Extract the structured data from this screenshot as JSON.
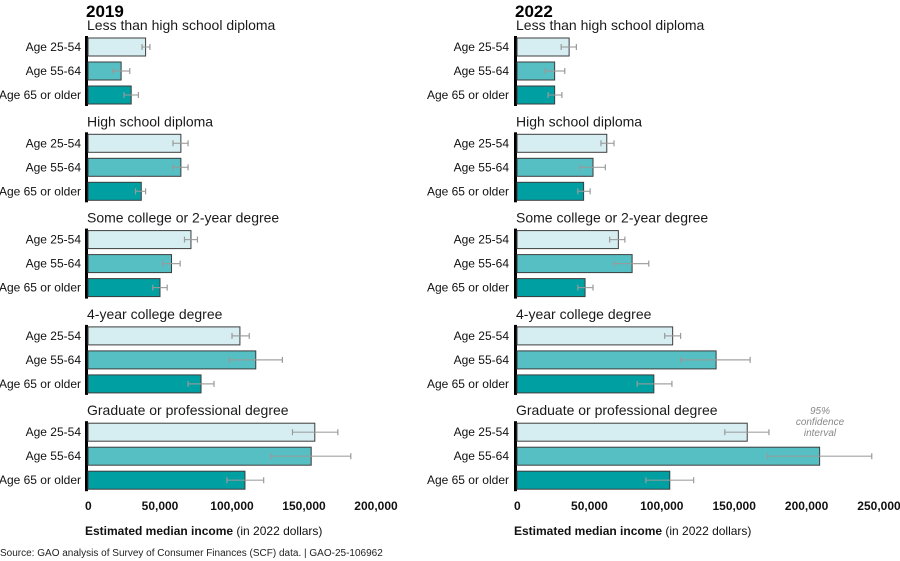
{
  "chart_data": [
    {
      "type": "bar",
      "orientation": "horizontal",
      "title": "2019",
      "xlabel_bold": "Estimated median income",
      "xlabel_rest": " (in 2022 dollars)",
      "xlim": [
        0,
        200000
      ],
      "ticks": [
        0,
        50000,
        100000,
        150000,
        200000
      ],
      "tick_labels": [
        "0",
        "50,000",
        "100,000",
        "150,000",
        "200,000"
      ],
      "series_names": [
        "Age 25-54",
        "Age 55-64",
        "Age 65 or older"
      ],
      "groups": [
        {
          "name": "Less than high school diploma",
          "values": [
            40000,
            23000,
            30000
          ],
          "ci_low": [
            37500,
            17000,
            25000
          ],
          "ci_high": [
            43000,
            29000,
            35000
          ]
        },
        {
          "name": "High school diploma",
          "values": [
            64500,
            64500,
            37000
          ],
          "ci_low": [
            59000,
            59000,
            33000
          ],
          "ci_high": [
            69500,
            69500,
            40000
          ]
        },
        {
          "name": "Some college or 2-year degree",
          "values": [
            71500,
            58000,
            50000
          ],
          "ci_low": [
            67000,
            52000,
            45000
          ],
          "ci_high": [
            76000,
            64000,
            55000
          ]
        },
        {
          "name": "4-year college degree",
          "values": [
            105500,
            116500,
            78500
          ],
          "ci_low": [
            100000,
            98000,
            69500
          ],
          "ci_high": [
            112000,
            135000,
            87500
          ]
        },
        {
          "name": "Graduate or professional degree",
          "values": [
            157500,
            155000,
            109000
          ],
          "ci_low": [
            142000,
            127000,
            96500
          ],
          "ci_high": [
            173500,
            182500,
            122000
          ]
        }
      ]
    },
    {
      "type": "bar",
      "orientation": "horizontal",
      "title": "2022",
      "xlabel_bold": "Estimated median income",
      "xlabel_rest": " (in 2022 dollars)",
      "xlim": [
        0,
        250000
      ],
      "ticks": [
        0,
        50000,
        100000,
        150000,
        200000,
        250000
      ],
      "tick_labels": [
        "0",
        "50,000",
        "100,000",
        "150,000",
        "200,000",
        "250,000"
      ],
      "series_names": [
        "Age 25-54",
        "Age 55-64",
        "Age 65 or older"
      ],
      "annotation": [
        "95%",
        "confidence",
        "interval"
      ],
      "groups": [
        {
          "name": "Less than high school diploma",
          "values": [
            36000,
            26000,
            26000
          ],
          "ci_low": [
            30500,
            19500,
            21500
          ],
          "ci_high": [
            41000,
            33000,
            31000
          ]
        },
        {
          "name": "High school diploma",
          "values": [
            62000,
            52500,
            46000
          ],
          "ci_low": [
            58000,
            43500,
            42000
          ],
          "ci_high": [
            67000,
            61000,
            50500
          ]
        },
        {
          "name": "Some college or 2-year degree",
          "values": [
            70000,
            79500,
            47000
          ],
          "ci_low": [
            64000,
            67000,
            42000
          ],
          "ci_high": [
            74500,
            91000,
            52500
          ]
        },
        {
          "name": "4-year college degree",
          "values": [
            107500,
            137500,
            94500
          ],
          "ci_low": [
            102000,
            113000,
            83000
          ],
          "ci_high": [
            113000,
            161000,
            107000
          ]
        },
        {
          "name": "Graduate or professional degree",
          "values": [
            159000,
            209000,
            105500
          ],
          "ci_low": [
            143500,
            173000,
            89000
          ],
          "ci_high": [
            174000,
            245000,
            122000
          ]
        }
      ]
    }
  ],
  "colors": {
    "age_25_54": "#d6eef1",
    "age_55_64": "#55bfc3",
    "age_65_plus": "#00a0a2",
    "bar_border": "#3d3d3d",
    "error_bar": "#9a9a9a"
  },
  "source": "Source: GAO analysis of Survey of Consumer Finances (SCF) data.  |  GAO-25-106962"
}
